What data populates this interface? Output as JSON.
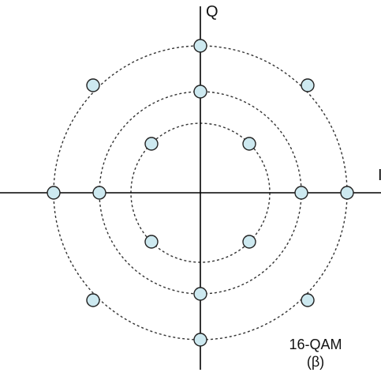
{
  "diagram": {
    "axis_q_label": "Q",
    "axis_i_label": "I",
    "caption_line1": "16-QAM",
    "caption_line2": "(β)",
    "colors": {
      "axis": "#000000",
      "ring": "#333333",
      "point_fill": "#cde9f0",
      "point_stroke": "#222222"
    },
    "rings": [
      {
        "name": "inner",
        "points": [
          [
            -1,
            1
          ],
          [
            1,
            1
          ],
          [
            -1,
            -1
          ],
          [
            1,
            -1
          ]
        ]
      },
      {
        "name": "middle",
        "points": [
          [
            0,
            1
          ],
          [
            -1,
            0
          ],
          [
            1,
            0
          ],
          [
            0,
            -1
          ]
        ]
      },
      {
        "name": "outer",
        "points": [
          [
            0,
            1
          ],
          [
            -1,
            1
          ],
          [
            1,
            1
          ],
          [
            -1,
            0
          ],
          [
            1,
            0
          ],
          [
            -1,
            -1
          ],
          [
            1,
            -1
          ],
          [
            0,
            -1
          ]
        ]
      }
    ]
  }
}
